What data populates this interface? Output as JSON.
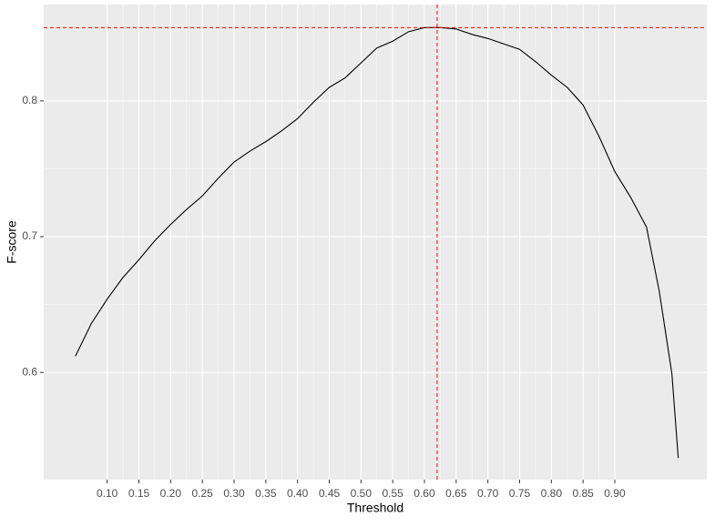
{
  "chart_data": {
    "type": "line",
    "x_label": "Threshold",
    "y_label": "F-score",
    "x": [
      0.05,
      0.075,
      0.1,
      0.125,
      0.15,
      0.175,
      0.2,
      0.225,
      0.25,
      0.275,
      0.3,
      0.325,
      0.35,
      0.375,
      0.4,
      0.425,
      0.45,
      0.475,
      0.5,
      0.525,
      0.55,
      0.575,
      0.6,
      0.625,
      0.65,
      0.675,
      0.7,
      0.725,
      0.75,
      0.775,
      0.8,
      0.825,
      0.85,
      0.875,
      0.9,
      0.925,
      0.95,
      0.97,
      0.99,
      1.0
    ],
    "series": [
      {
        "name": "F-score",
        "color": "#000000",
        "values": [
          0.612,
          0.636,
          0.654,
          0.67,
          0.683,
          0.697,
          0.709,
          0.72,
          0.73,
          0.743,
          0.755,
          0.763,
          0.77,
          0.778,
          0.787,
          0.799,
          0.81,
          0.817,
          0.828,
          0.839,
          0.844,
          0.851,
          0.854,
          0.854,
          0.853,
          0.849,
          0.846,
          0.842,
          0.838,
          0.829,
          0.819,
          0.81,
          0.797,
          0.774,
          0.748,
          0.729,
          0.707,
          0.66,
          0.599,
          0.537
        ]
      }
    ],
    "xlim": [
      0,
      1.045
    ],
    "ylim": [
      0.521,
      0.871
    ],
    "xticks": [
      {
        "value": 0.1,
        "label": "0.10"
      },
      0.15,
      {
        "value": 0.2,
        "label": "0.20"
      },
      0.25,
      {
        "value": 0.3,
        "label": "0.30"
      },
      0.35,
      {
        "value": 0.4,
        "label": "0.40"
      },
      0.45,
      {
        "value": 0.5,
        "label": "0.50"
      },
      0.55,
      {
        "value": 0.6,
        "label": "0.60"
      },
      0.65,
      {
        "value": 0.7,
        "label": "0.70"
      },
      0.75,
      {
        "value": 0.8,
        "label": "0.80"
      },
      0.85,
      {
        "value": 0.9,
        "label": "0.90"
      }
    ],
    "yticks": [
      0.6,
      0.7,
      0.8
    ],
    "vline": 0.62,
    "hline": 0.854,
    "ref_color": "#ff0000",
    "grid": true
  }
}
